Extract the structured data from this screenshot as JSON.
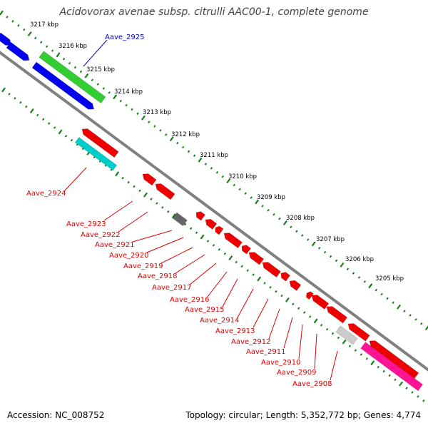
{
  "title": "Acidovorax avenae subsp. citrulli AAC00-1, complete genome",
  "footer": {
    "accession": "Accession: NC_008752",
    "summary": "Topology: circular; Length: 5,352,772 bp; Genes: 4,774"
  },
  "colors": {
    "backbone": "#808080",
    "tick": "#1a7f1a",
    "forward_label": "#0000cc",
    "reverse_label": "#dd0000",
    "genes": [
      "#0000ee",
      "#33cc33",
      "#00cccc",
      "#ee0000",
      "#666666",
      "#cccccc",
      "#ff1493"
    ]
  },
  "ticks": [
    "3217 kbp",
    "3216 kbp",
    "3215 kbp",
    "3214 kbp",
    "3213 kbp",
    "3212 kbp",
    "3211 kbp",
    "3210 kbp",
    "3209 kbp",
    "3208 kbp",
    "3207 kbp",
    "3206 kbp",
    "3205 kbp"
  ],
  "forward_labels": [
    "Aave_2925"
  ],
  "reverse_labels": [
    "Aave_2924",
    "Aave_2923",
    "Aave_2922",
    "Aave_2921",
    "Aave_2920",
    "Aave_2919",
    "Aave_2918",
    "Aave_2917",
    "Aave_2916",
    "Aave_2915",
    "Aave_2914",
    "Aave_2913",
    "Aave_2912",
    "Aave_2911",
    "Aave_2910",
    "Aave_2909",
    "Aave_2908"
  ]
}
